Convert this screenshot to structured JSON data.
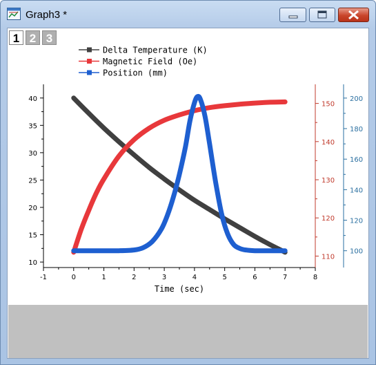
{
  "window": {
    "title": "Graph3 *",
    "icon": "graph-window-icon",
    "controls": {
      "minimize": "minimize-icon",
      "maximize": "maximize-icon",
      "close": "close-icon"
    }
  },
  "layers": [
    {
      "label": "1",
      "active": true
    },
    {
      "label": "2",
      "active": false
    },
    {
      "label": "3",
      "active": false
    }
  ],
  "colors": {
    "series1": "#404040",
    "series2": "#e8383b",
    "series3": "#1e5fd0",
    "axis_right1": "#c0392b",
    "axis_right2": "#2a6fa0"
  },
  "chart_data": {
    "type": "line",
    "xlabel": "Time (sec)",
    "xlim": [
      -1,
      8
    ],
    "x_ticks": [
      "-1",
      "0",
      "1",
      "2",
      "3",
      "4",
      "5",
      "6",
      "7",
      "8"
    ],
    "legend": {
      "placement": "top",
      "entries": [
        "Delta Temperature (K)",
        "Magnetic Field (Oe)",
        "Position (mm)"
      ]
    },
    "axes": [
      {
        "side": "left",
        "ylim": [
          9,
          42.5
        ],
        "ticks": [
          "10",
          "15",
          "20",
          "25",
          "30",
          "35",
          "40"
        ]
      },
      {
        "side": "right",
        "ylim": [
          107,
          155
        ],
        "ticks": [
          "110",
          "120",
          "130",
          "140",
          "150"
        ]
      },
      {
        "side": "right-offset",
        "ylim": [
          89,
          209
        ],
        "ticks": [
          "100",
          "120",
          "140",
          "160",
          "180",
          "200"
        ]
      }
    ],
    "series": [
      {
        "name": "Delta Temperature (K)",
        "axis": 0,
        "x": [
          0,
          0.5,
          1,
          1.5,
          2,
          2.5,
          3,
          3.5,
          4,
          4.5,
          5,
          5.5,
          6,
          6.5,
          7
        ],
        "y": [
          40,
          37.2,
          34.5,
          32.0,
          29.6,
          27.3,
          25.2,
          23.2,
          21.3,
          19.6,
          17.9,
          16.3,
          14.7,
          13.2,
          11.8
        ]
      },
      {
        "name": "Magnetic Field (Oe)",
        "axis": 1,
        "x": [
          0,
          0.25,
          0.5,
          0.75,
          1,
          1.5,
          2,
          2.5,
          3,
          3.5,
          4,
          4.5,
          5,
          5.5,
          6,
          6.5,
          7
        ],
        "y": [
          111,
          117,
          122,
          126.5,
          130.2,
          136.2,
          140.5,
          143.5,
          145.6,
          147,
          148.1,
          148.9,
          149.4,
          149.8,
          150.1,
          150.3,
          150.4
        ]
      },
      {
        "name": "Position (mm)",
        "axis": 2,
        "x": [
          0,
          0.5,
          1,
          1.5,
          2,
          2.3,
          2.6,
          2.9,
          3.1,
          3.3,
          3.5,
          3.7,
          3.85,
          4.0,
          4.1,
          4.2,
          4.35,
          4.5,
          4.7,
          4.9,
          5.1,
          5.3,
          5.5,
          5.7,
          6.0,
          6.5,
          7
        ],
        "y": [
          100,
          100,
          100,
          100,
          100.5,
          102,
          106,
          114,
          123,
          135,
          150,
          168,
          185,
          197,
          201,
          199,
          188,
          170,
          145,
          124,
          111,
          104,
          101.5,
          100.5,
          100,
          100,
          100
        ]
      }
    ]
  }
}
